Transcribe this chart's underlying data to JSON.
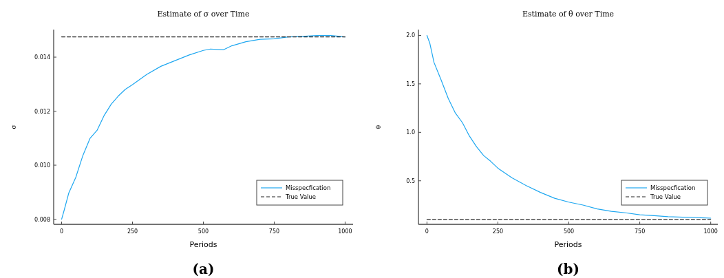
{
  "chart_data": [
    {
      "type": "line",
      "title": "Estimate of σ over Time",
      "xlabel": "Periods",
      "ylabel": "σ",
      "annotations": [
        "(a)"
      ],
      "xlim": [
        -28,
        1028
      ],
      "ylim": [
        0.00781,
        0.01502
      ],
      "xticks": [
        0,
        250,
        500,
        750,
        1000
      ],
      "yticks": [
        {
          "value": 0.008,
          "label": "0.008"
        },
        {
          "value": 0.01,
          "label": "0.010"
        },
        {
          "value": 0.012,
          "label": "0.012"
        },
        {
          "value": 0.014,
          "label": "0.014"
        }
      ],
      "grid": false,
      "legend": "bottom right",
      "series": [
        {
          "name": "Misspecfication",
          "color": "#1ea7f0",
          "line_style": "solid",
          "x": [
            0,
            10,
            25,
            50,
            75,
            100,
            125,
            150,
            175,
            200,
            225,
            250,
            300,
            350,
            400,
            450,
            500,
            525,
            570,
            600,
            650,
            700,
            750,
            800,
            850,
            900,
            950,
            1000
          ],
          "values": [
            0.008,
            0.00837,
            0.00896,
            0.00955,
            0.01036,
            0.01099,
            0.01129,
            0.01184,
            0.01226,
            0.01256,
            0.01281,
            0.01298,
            0.01336,
            0.01366,
            0.01387,
            0.01408,
            0.01425,
            0.0143,
            0.01427,
            0.01442,
            0.01457,
            0.01466,
            0.01468,
            0.01475,
            0.01477,
            0.0148,
            0.0148,
            0.01475
          ]
        },
        {
          "name": "True Value",
          "color": "#222222",
          "line_style": "dashed",
          "x": [
            0,
            1000
          ],
          "values": [
            0.01475,
            0.01475
          ]
        }
      ]
    },
    {
      "type": "line",
      "title": "Estimate of θ over Time",
      "xlabel": "Periods",
      "ylabel": "θ",
      "annotations": [
        "(b)"
      ],
      "xlim": [
        -30,
        1025
      ],
      "ylim": [
        0.051,
        2.06
      ],
      "xticks": [
        0,
        250,
        500,
        750,
        1000
      ],
      "yticks": [
        {
          "value": 0.5,
          "label": "0.5"
        },
        {
          "value": 1,
          "label": "1.0"
        },
        {
          "value": 1.5,
          "label": "1.5"
        },
        {
          "value": 2,
          "label": "2.0"
        }
      ],
      "grid": false,
      "legend": "bottom right",
      "series": [
        {
          "name": "Misspecfication",
          "color": "#1ea7f0",
          "line_style": "solid",
          "x": [
            0,
            10,
            25,
            50,
            75,
            100,
            125,
            150,
            175,
            200,
            225,
            250,
            300,
            350,
            400,
            450,
            500,
            550,
            600,
            650,
            700,
            750,
            800,
            850,
            900,
            1000
          ],
          "values": [
            2.0,
            1.92,
            1.72,
            1.54,
            1.35,
            1.2,
            1.1,
            0.96,
            0.85,
            0.76,
            0.7,
            0.63,
            0.53,
            0.45,
            0.38,
            0.32,
            0.28,
            0.25,
            0.21,
            0.185,
            0.17,
            0.15,
            0.14,
            0.13,
            0.125,
            0.115
          ]
        },
        {
          "name": "True Value",
          "color": "#222222",
          "line_style": "dashed",
          "x": [
            0,
            1000
          ],
          "values": [
            0.1,
            0.1
          ]
        }
      ]
    }
  ]
}
